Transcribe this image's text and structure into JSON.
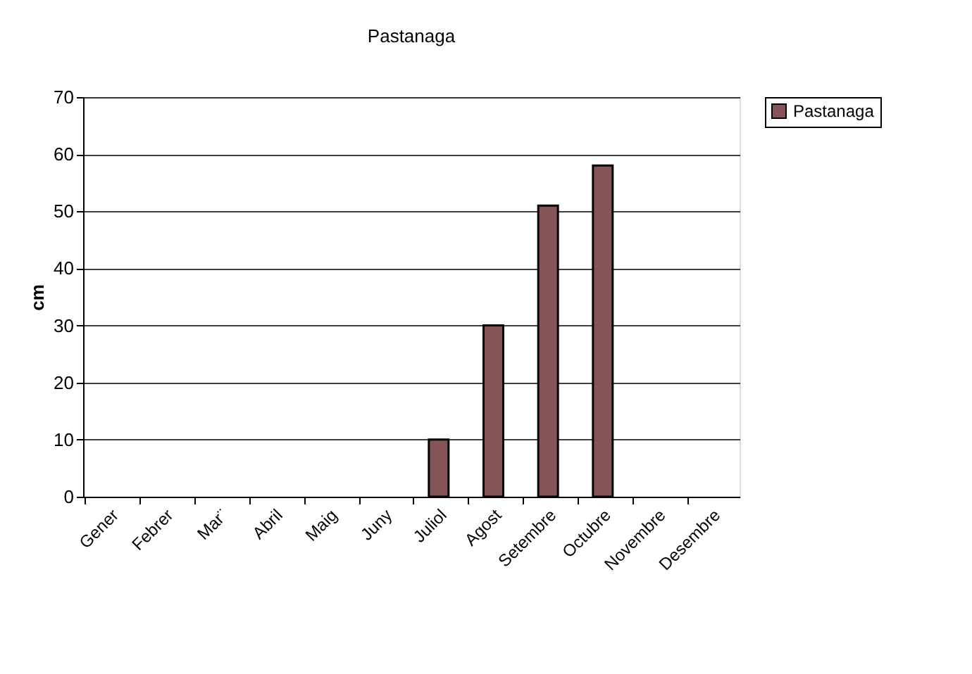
{
  "chart_data": {
    "type": "bar",
    "title": "Pastanaga",
    "ylabel": "cm",
    "categories": [
      "Gener",
      "Febrer",
      "Mar¨",
      "Abril",
      "Maig",
      "Juny",
      "Juliol",
      "Agost",
      "Setembre",
      "Octubre",
      "Novembre",
      "Desembre"
    ],
    "series": [
      {
        "name": "Pastanaga",
        "color": "#845458",
        "values": [
          null,
          null,
          null,
          null,
          null,
          null,
          10,
          30,
          51,
          58,
          null,
          null
        ]
      }
    ],
    "ylim": [
      0,
      70
    ],
    "yticks": [
      0,
      10,
      20,
      30,
      40,
      50,
      60,
      70
    ],
    "grid": "y",
    "legend": "right"
  }
}
